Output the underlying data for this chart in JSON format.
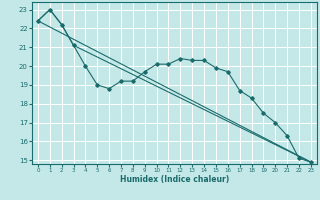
{
  "xlabel": "Humidex (Indice chaleur)",
  "ylabel": "",
  "bg_color": "#c4e8e8",
  "line_color": "#1a6b6b",
  "grid_color": "#ffffff",
  "xlim": [
    -0.5,
    23.5
  ],
  "ylim": [
    14.8,
    23.4
  ],
  "xticks": [
    0,
    1,
    2,
    3,
    4,
    5,
    6,
    7,
    8,
    9,
    10,
    11,
    12,
    13,
    14,
    15,
    16,
    17,
    18,
    19,
    20,
    21,
    22,
    23
  ],
  "yticks": [
    15,
    16,
    17,
    18,
    19,
    20,
    21,
    22,
    23
  ],
  "series1_x": [
    0,
    1,
    2,
    3,
    4,
    5,
    6,
    7,
    8,
    9,
    10,
    11,
    12,
    13,
    14,
    15,
    16,
    17,
    18,
    19,
    20,
    21,
    22,
    23
  ],
  "series1_y": [
    22.4,
    23.0,
    22.2,
    21.1,
    20.0,
    19.0,
    18.8,
    19.2,
    19.2,
    19.7,
    20.1,
    20.1,
    20.4,
    20.3,
    20.3,
    19.9,
    19.7,
    18.7,
    18.3,
    17.5,
    17.0,
    16.3,
    15.1,
    14.9
  ],
  "series2_x": [
    0,
    23
  ],
  "series2_y": [
    22.4,
    14.9
  ],
  "series3_x": [
    0,
    1,
    2,
    3,
    23
  ],
  "series3_y": [
    22.4,
    23.0,
    22.2,
    21.1,
    14.9
  ]
}
